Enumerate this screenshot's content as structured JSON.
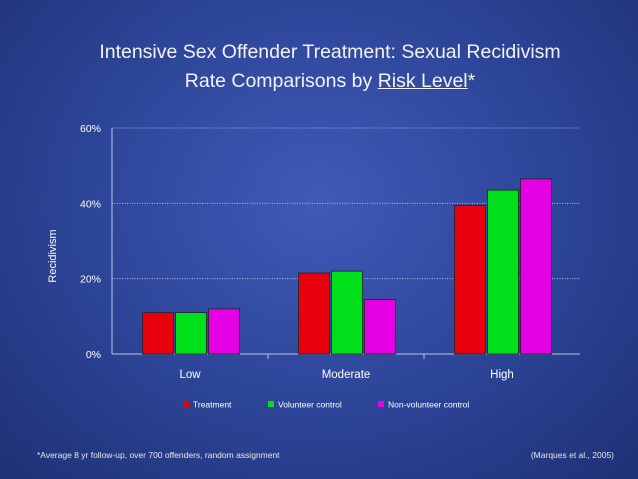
{
  "slide": {
    "title_line1": "Intensive Sex Offender Treatment: Sexual Recidivism",
    "title_line2_prefix": "Rate Comparisons by ",
    "title_line2_underlined": "Risk Level",
    "title_line2_suffix": "*",
    "footnote": "*Average 8 yr follow-up, over 700 offenders, random assignment",
    "source": "(Marques et al., 2005)"
  },
  "chart_data": {
    "type": "bar",
    "title": "",
    "xlabel": "",
    "ylabel": "Recidivism",
    "categories": [
      "Low",
      "Moderate",
      "High"
    ],
    "series": [
      {
        "name": "Treatment",
        "color": "#e8000c",
        "values": [
          11,
          21.5,
          39.5
        ]
      },
      {
        "name": "Volunteer control",
        "color": "#00e01a",
        "values": [
          11,
          22,
          43.5
        ]
      },
      {
        "name": "Non-volunteer control",
        "color": "#e600e6",
        "values": [
          12,
          14.5,
          46.5
        ]
      }
    ],
    "ylim": [
      0,
      60
    ],
    "yticks": [
      0,
      20,
      40,
      60
    ],
    "ytick_labels": [
      "0%",
      "20%",
      "40%",
      "60%"
    ],
    "grid": true,
    "legend": "bottom-center"
  }
}
